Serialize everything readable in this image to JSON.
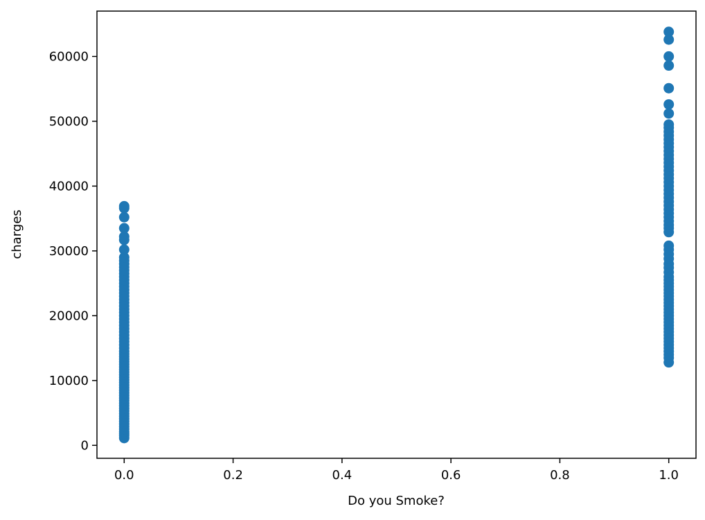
{
  "chart_data": {
    "type": "scatter",
    "title": "",
    "xlabel": "Do you Smoke?",
    "ylabel": "charges",
    "xlim": [
      -0.05,
      1.05
    ],
    "ylim": [
      -2000,
      67000
    ],
    "x_ticks": [
      "0.0",
      "0.2",
      "0.4",
      "0.6",
      "0.8",
      "1.0"
    ],
    "y_ticks": [
      "0",
      "10000",
      "20000",
      "30000",
      "40000",
      "50000",
      "60000"
    ],
    "grid": false,
    "marker_color": "#1f77b4",
    "series": [
      {
        "x": 0.0,
        "values": [
          1121,
          1500,
          1800,
          2100,
          2500,
          2900,
          3300,
          3700,
          4100,
          4500,
          4900,
          5300,
          5700,
          6100,
          6500,
          6900,
          7300,
          7700,
          8100,
          8500,
          8900,
          9300,
          9700,
          10100,
          10500,
          10900,
          11300,
          11700,
          12100,
          12500,
          12900,
          13300,
          13700,
          14100,
          14500,
          15000,
          15500,
          16000,
          16500,
          17000,
          17500,
          18000,
          18500,
          19000,
          19500,
          20000,
          20500,
          21000,
          21500,
          22000,
          22500,
          23000,
          23500,
          24000,
          24500,
          25000,
          25500,
          26000,
          26500,
          27000,
          27500,
          28000,
          28500,
          29000,
          30200,
          31700,
          32200,
          33500,
          35200,
          36600,
          36900
        ]
      },
      {
        "x": 1.0,
        "values": [
          12800,
          13500,
          14000,
          14500,
          15000,
          15500,
          16000,
          16500,
          17000,
          17500,
          18000,
          18500,
          19000,
          19500,
          20000,
          20500,
          21000,
          21500,
          22000,
          22500,
          23000,
          23500,
          24000,
          24500,
          25000,
          25500,
          26000,
          26700,
          27400,
          28000,
          28800,
          29500,
          30200,
          30800,
          32900,
          33500,
          34000,
          34600,
          35200,
          35800,
          36400,
          37000,
          37600,
          38200,
          38800,
          39400,
          40000,
          40600,
          41200,
          41800,
          42400,
          43000,
          43600,
          44200,
          44800,
          45400,
          46000,
          46600,
          47200,
          47800,
          48400,
          49000,
          49500,
          51200,
          52600,
          55100,
          58600,
          60000,
          62600,
          63800
        ]
      }
    ]
  }
}
